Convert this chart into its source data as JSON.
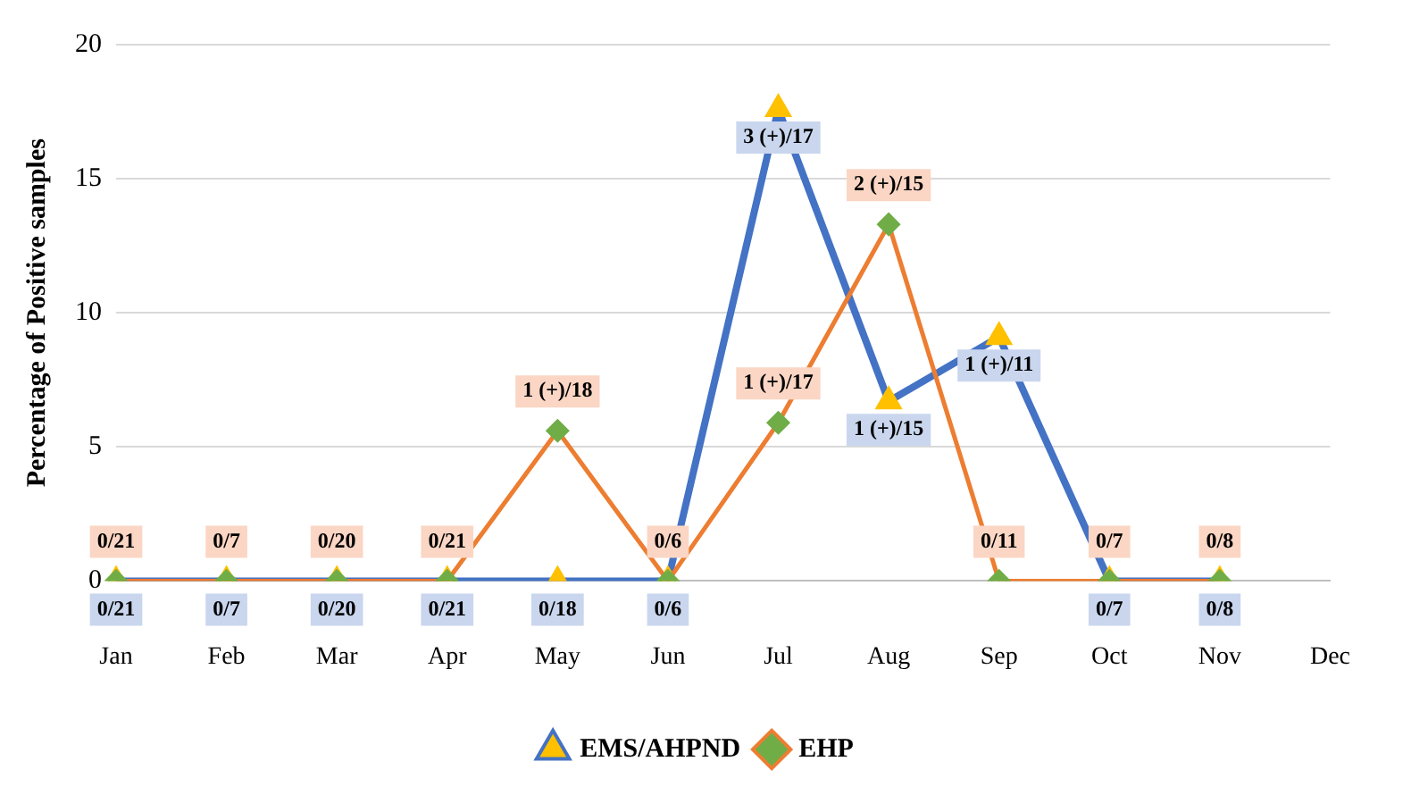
{
  "chart_data": {
    "type": "line",
    "ylabel": "Percentage of Positive samples",
    "categories": [
      "Jan",
      "Feb",
      "Mar",
      "Apr",
      "May",
      "Jun",
      "Jul",
      "Aug",
      "Sep",
      "Oct",
      "Nov",
      "Dec"
    ],
    "series": [
      {
        "name": "EMS/AHPND",
        "color": "#4472c4",
        "marker": "triangle",
        "colors": [
          "#ffc000",
          "#ffc000",
          "#ffc000",
          "#ffc000",
          "#ffc000",
          "#ffc000",
          "#ffc000",
          "#ffc000",
          "#ffc000",
          "#ffc000",
          "#ffc000",
          null
        ],
        "values": [
          0,
          0,
          0,
          0,
          0,
          0,
          17.6,
          6.7,
          9.1,
          0,
          0,
          null
        ]
      },
      {
        "name": "EHP",
        "color": "#ed7d31",
        "marker": "diamond",
        "colors": [
          "#70ad47",
          "#70ad47",
          "#70ad47",
          "#70ad47",
          "#70ad47",
          "#70ad47",
          "#70ad47",
          "#70ad47",
          "#70ad47",
          "#70ad47",
          "#70ad47",
          null
        ],
        "values": [
          0,
          0,
          0,
          0,
          5.6,
          0,
          5.9,
          13.3,
          0,
          0,
          0,
          null
        ]
      }
    ],
    "annotations": [
      {
        "text": "0/21",
        "x": "Jan",
        "y": 0
      },
      {
        "text": "0/7",
        "x": "Feb",
        "y": 0
      },
      {
        "text": "0/20",
        "x": "Mar",
        "y": 0
      },
      {
        "text": "0/21",
        "x": "Apr",
        "y": 0
      },
      {
        "text": "0/18",
        "x": "May",
        "y": 0
      },
      {
        "text": "0/6",
        "x": "Jun",
        "y": 0
      },
      {
        "text": "3 (+)/17",
        "x": "Jul",
        "y": 17.6
      },
      {
        "text": "1 (+)/15",
        "x": "Aug",
        "y": 6.7
      },
      {
        "text": "1 (+)/11",
        "x": "Sep",
        "y": 9.1
      },
      {
        "text": "0/7",
        "x": "Oct",
        "y": 0
      },
      {
        "text": "0/8",
        "x": "Nov",
        "y": 0
      },
      {
        "text": "0/21",
        "x": "Jan",
        "y": 0
      },
      {
        "text": "0/7",
        "x": "Feb",
        "y": 0
      },
      {
        "text": "0/20",
        "x": "Mar",
        "y": 0
      },
      {
        "text": "0/21",
        "x": "Apr",
        "y": 0
      },
      {
        "text": "1 (+)/18",
        "x": "May",
        "y": 5.6
      },
      {
        "text": "0/6",
        "x": "Jun",
        "y": 0
      },
      {
        "text": "1 (+)/17",
        "x": "Jul",
        "y": 5.9
      },
      {
        "text": "2 (+)/15",
        "x": "Aug",
        "y": 13.3
      },
      {
        "text": "0/11",
        "x": "Sep",
        "y": 0
      },
      {
        "text": "0/7",
        "x": "Oct",
        "y": 0
      },
      {
        "text": "0/8",
        "x": "Nov",
        "y": 0
      }
    ],
    "ylim": [
      0,
      20
    ],
    "yticks": [
      0,
      5,
      10,
      15,
      20
    ],
    "grid": "y",
    "legend": "bottom"
  }
}
